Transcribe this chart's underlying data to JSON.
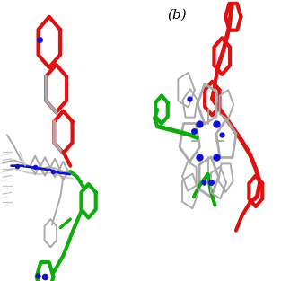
{
  "title_b": "(b)",
  "bg_color": "#ffffff",
  "colors": {
    "red": "#dd1111",
    "green": "#11aa11",
    "blue": "#1111cc",
    "gray": "#aaaaaa",
    "lgray": "#cccccc",
    "dgray": "#888888"
  },
  "lw_thick": 3.0,
  "lw_medium": 2.2,
  "lw_thin": 1.4
}
